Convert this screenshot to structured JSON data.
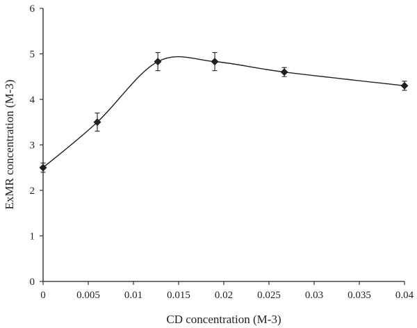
{
  "chart_data": {
    "type": "scatter",
    "title": "",
    "xlabel": "CD concentration (M-3)",
    "ylabel": "ExMR concentration (M-3)",
    "xlim": [
      0,
      0.04
    ],
    "ylim": [
      0,
      6
    ],
    "xticks": [
      "0",
      "0.005",
      "0.01",
      "0.015",
      "0.02",
      "0.025",
      "0.03",
      "0.035",
      "0.04"
    ],
    "xtick_values": [
      0,
      0.005,
      0.01,
      0.015,
      0.02,
      0.025,
      0.03,
      0.035,
      0.04
    ],
    "yticks": [
      "0",
      "1",
      "2",
      "3",
      "4",
      "5",
      "6"
    ],
    "ytick_values": [
      0,
      1,
      2,
      3,
      4,
      5,
      6
    ],
    "grid": false,
    "legend": "none",
    "series": [
      {
        "marker": "diamond",
        "line": "smooth",
        "x": [
          0,
          0.006,
          0.0127,
          0.019,
          0.0267,
          0.04
        ],
        "y": [
          2.5,
          3.5,
          4.83,
          4.83,
          4.6,
          4.3
        ],
        "error": [
          0.1,
          0.2,
          0.2,
          0.2,
          0.1,
          0.1
        ]
      }
    ],
    "colors": {
      "ink": "#231f20"
    }
  }
}
